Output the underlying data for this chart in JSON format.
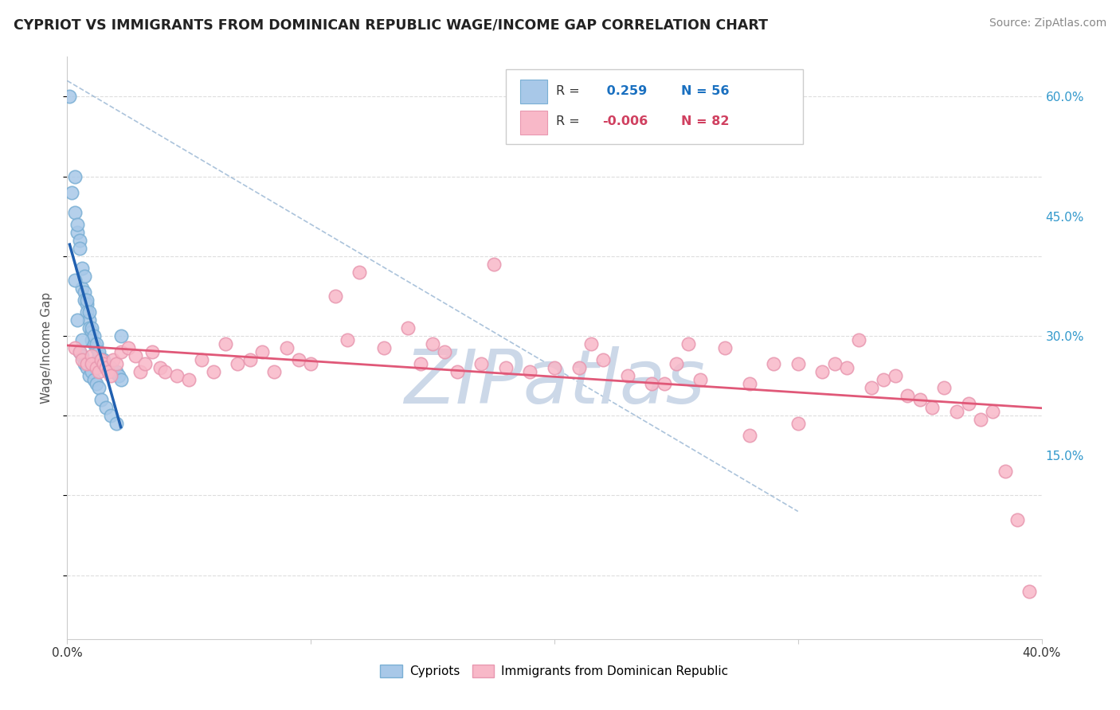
{
  "title": "CYPRIOT VS IMMIGRANTS FROM DOMINICAN REPUBLIC WAGE/INCOME GAP CORRELATION CHART",
  "source_text": "Source: ZipAtlas.com",
  "ylabel": "Wage/Income Gap",
  "legend_labels": [
    "Cypriots",
    "Immigrants from Dominican Republic"
  ],
  "r_values": [
    0.259,
    -0.006
  ],
  "n_values": [
    56,
    82
  ],
  "blue_color": "#a8c8e8",
  "blue_edge_color": "#7aafd4",
  "pink_color": "#f8b8c8",
  "pink_edge_color": "#e898b0",
  "blue_line_color": "#2060b0",
  "pink_line_color": "#e05878",
  "diag_line_color": "#aabbcc",
  "xlim": [
    0.0,
    0.4
  ],
  "ylim": [
    -0.08,
    0.65
  ],
  "right_yticks": [
    0.15,
    0.3,
    0.45,
    0.6
  ],
  "right_yticklabels": [
    "15.0%",
    "30.0%",
    "45.0%",
    "60.0%"
  ],
  "background_color": "#ffffff",
  "grid_color": "#dddddd",
  "blue_scatter_x": [
    0.001,
    0.002,
    0.003,
    0.003,
    0.004,
    0.004,
    0.005,
    0.005,
    0.006,
    0.006,
    0.007,
    0.007,
    0.007,
    0.008,
    0.008,
    0.008,
    0.009,
    0.009,
    0.009,
    0.01,
    0.01,
    0.01,
    0.011,
    0.011,
    0.012,
    0.012,
    0.013,
    0.013,
    0.014,
    0.014,
    0.015,
    0.015,
    0.016,
    0.017,
    0.018,
    0.019,
    0.02,
    0.021,
    0.022,
    0.003,
    0.005,
    0.006,
    0.007,
    0.008,
    0.009,
    0.01,
    0.011,
    0.012,
    0.013,
    0.014,
    0.016,
    0.018,
    0.02,
    0.004,
    0.006,
    0.022
  ],
  "blue_scatter_y": [
    0.6,
    0.48,
    0.5,
    0.455,
    0.43,
    0.44,
    0.42,
    0.41,
    0.385,
    0.36,
    0.355,
    0.345,
    0.375,
    0.34,
    0.345,
    0.33,
    0.32,
    0.33,
    0.31,
    0.305,
    0.295,
    0.31,
    0.29,
    0.3,
    0.285,
    0.29,
    0.275,
    0.28,
    0.27,
    0.265,
    0.265,
    0.27,
    0.26,
    0.255,
    0.26,
    0.255,
    0.255,
    0.25,
    0.245,
    0.37,
    0.28,
    0.275,
    0.265,
    0.26,
    0.25,
    0.255,
    0.245,
    0.24,
    0.235,
    0.22,
    0.21,
    0.2,
    0.19,
    0.32,
    0.295,
    0.3
  ],
  "pink_scatter_x": [
    0.003,
    0.005,
    0.006,
    0.008,
    0.01,
    0.01,
    0.012,
    0.013,
    0.014,
    0.015,
    0.016,
    0.017,
    0.018,
    0.019,
    0.02,
    0.022,
    0.025,
    0.028,
    0.03,
    0.032,
    0.035,
    0.038,
    0.04,
    0.045,
    0.05,
    0.055,
    0.06,
    0.065,
    0.07,
    0.075,
    0.08,
    0.085,
    0.09,
    0.095,
    0.1,
    0.11,
    0.115,
    0.12,
    0.13,
    0.14,
    0.145,
    0.15,
    0.155,
    0.16,
    0.17,
    0.175,
    0.18,
    0.19,
    0.2,
    0.21,
    0.215,
    0.22,
    0.23,
    0.24,
    0.245,
    0.25,
    0.255,
    0.26,
    0.27,
    0.28,
    0.29,
    0.3,
    0.31,
    0.315,
    0.32,
    0.325,
    0.33,
    0.335,
    0.34,
    0.345,
    0.35,
    0.355,
    0.36,
    0.365,
    0.37,
    0.375,
    0.38,
    0.385,
    0.39,
    0.395,
    0.3,
    0.28
  ],
  "pink_scatter_y": [
    0.285,
    0.28,
    0.27,
    0.265,
    0.275,
    0.265,
    0.26,
    0.255,
    0.27,
    0.265,
    0.26,
    0.255,
    0.25,
    0.27,
    0.265,
    0.28,
    0.285,
    0.275,
    0.255,
    0.265,
    0.28,
    0.26,
    0.255,
    0.25,
    0.245,
    0.27,
    0.255,
    0.29,
    0.265,
    0.27,
    0.28,
    0.255,
    0.285,
    0.27,
    0.265,
    0.35,
    0.295,
    0.38,
    0.285,
    0.31,
    0.265,
    0.29,
    0.28,
    0.255,
    0.265,
    0.39,
    0.26,
    0.255,
    0.26,
    0.26,
    0.29,
    0.27,
    0.25,
    0.24,
    0.24,
    0.265,
    0.29,
    0.245,
    0.285,
    0.24,
    0.265,
    0.265,
    0.255,
    0.265,
    0.26,
    0.295,
    0.235,
    0.245,
    0.25,
    0.225,
    0.22,
    0.21,
    0.235,
    0.205,
    0.215,
    0.195,
    0.205,
    0.13,
    0.07,
    -0.02,
    0.19,
    0.175
  ],
  "watermark_text": "ZIPatlas",
  "watermark_color": "#ccd8e8",
  "legend_r_blue_color": "#1a70c0",
  "legend_r_pink_color": "#d04060"
}
